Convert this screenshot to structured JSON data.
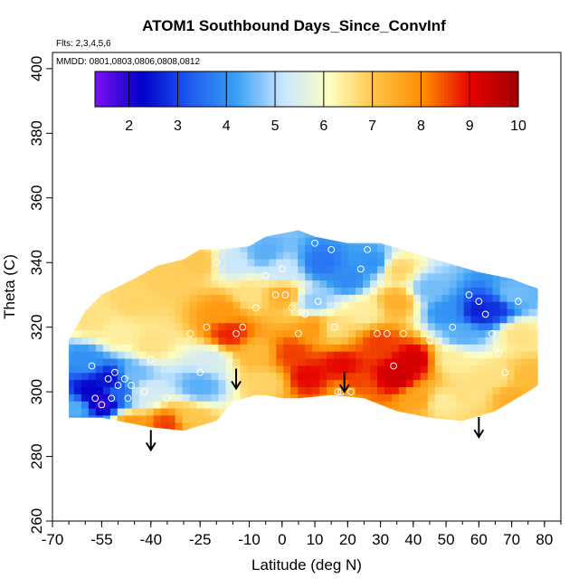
{
  "chart_data": {
    "type": "heatmap",
    "title": "ATOM1 Southbound Days_Since_ConvInf",
    "annotations": [
      "Flts: 2,3,4,5,6",
      "MMDD: 0801,0803,0806,0808,0812"
    ],
    "xlabel": "Latitude (deg N)",
    "ylabel": "Theta (C)",
    "xlim": [
      -70,
      85
    ],
    "ylim": [
      260,
      405
    ],
    "x_ticks": [
      -70,
      -55,
      -40,
      -25,
      -10,
      0,
      10,
      20,
      30,
      40,
      50,
      60,
      70,
      80
    ],
    "x_tick_labels": [
      "-70",
      "-55",
      "-40",
      "-25",
      "-10",
      "0",
      "10",
      "20",
      "30",
      "40",
      "50",
      "60",
      "70",
      "80"
    ],
    "y_ticks": [
      260,
      280,
      300,
      320,
      340,
      360,
      380,
      400
    ],
    "y_tick_labels": [
      "260",
      "280",
      "300",
      "320",
      "340",
      "360",
      "380",
      "400"
    ],
    "colorbar": {
      "min": 1.3,
      "max": 10,
      "ticks": [
        2,
        3,
        4,
        5,
        6,
        7,
        8,
        9,
        10
      ],
      "tick_labels": [
        "2",
        "3",
        "4",
        "5",
        "6",
        "7",
        "8",
        "9",
        "10"
      ],
      "colors": [
        "#7b12f0",
        "#0000c8",
        "#1e5af0",
        "#3aa0f5",
        "#c8e6ff",
        "#ffffc0",
        "#ffc040",
        "#ff8a00",
        "#e60000",
        "#a00000"
      ]
    },
    "field_boundary": {
      "lat": [
        -65,
        -64,
        -60,
        -55,
        -45,
        -40,
        -30,
        -20,
        -15,
        -8,
        -5,
        0,
        5,
        15,
        25,
        35,
        45,
        55,
        65,
        75,
        78,
        78,
        75,
        70,
        60,
        50,
        40,
        30,
        20,
        10,
        5,
        -5,
        -10,
        -20,
        -25,
        -30,
        -38,
        -45,
        -55,
        -60,
        -65
      ],
      "theta": [
        292,
        292,
        292,
        292,
        290,
        289,
        288,
        291,
        297,
        299,
        299,
        298,
        298,
        299,
        298,
        294,
        292,
        291,
        294,
        300,
        302,
        332,
        333,
        335,
        337,
        340,
        343,
        346,
        346,
        348,
        350,
        348,
        345,
        344,
        344,
        341,
        339,
        335,
        330,
        325,
        316
      ]
    },
    "field_nodes": [
      {
        "lat": -58,
        "theta": 300,
        "value": 2.2
      },
      {
        "lat": -55,
        "theta": 297,
        "value": 1.8
      },
      {
        "lat": -52,
        "theta": 304,
        "value": 2.4
      },
      {
        "lat": -60,
        "theta": 310,
        "value": 4.0
      },
      {
        "lat": -63,
        "theta": 295,
        "value": 4.4
      },
      {
        "lat": -50,
        "theta": 300,
        "value": 3.4
      },
      {
        "lat": -46,
        "theta": 305,
        "value": 4.6
      },
      {
        "lat": -42,
        "theta": 300,
        "value": 5.4
      },
      {
        "lat": -46,
        "theta": 290,
        "value": 7.8
      },
      {
        "lat": -35,
        "theta": 290,
        "value": 8.6
      },
      {
        "lat": -28,
        "theta": 292,
        "value": 7.0
      },
      {
        "lat": -25,
        "theta": 302,
        "value": 4.4
      },
      {
        "lat": -22,
        "theta": 310,
        "value": 5.4
      },
      {
        "lat": -40,
        "theta": 315,
        "value": 6.6
      },
      {
        "lat": -50,
        "theta": 318,
        "value": 6.4
      },
      {
        "lat": -58,
        "theta": 322,
        "value": 6.6
      },
      {
        "lat": -45,
        "theta": 328,
        "value": 6.8
      },
      {
        "lat": -35,
        "theta": 335,
        "value": 6.9
      },
      {
        "lat": -25,
        "theta": 340,
        "value": 7.0
      },
      {
        "lat": -16,
        "theta": 318,
        "value": 8.8
      },
      {
        "lat": -18,
        "theta": 325,
        "value": 7.8
      },
      {
        "lat": -15,
        "theta": 340,
        "value": 5.2
      },
      {
        "lat": -10,
        "theta": 330,
        "value": 6.6
      },
      {
        "lat": -5,
        "theta": 343,
        "value": 4.4
      },
      {
        "lat": 0,
        "theta": 338,
        "value": 5.2
      },
      {
        "lat": 0,
        "theta": 330,
        "value": 7.4
      },
      {
        "lat": -8,
        "theta": 312,
        "value": 7.2
      },
      {
        "lat": -5,
        "theta": 303,
        "value": 6.8
      },
      {
        "lat": 3,
        "theta": 312,
        "value": 8.6
      },
      {
        "lat": 10,
        "theta": 320,
        "value": 7.8
      },
      {
        "lat": 8,
        "theta": 305,
        "value": 9.0
      },
      {
        "lat": 18,
        "theta": 308,
        "value": 9.0
      },
      {
        "lat": 22,
        "theta": 302,
        "value": 8.6
      },
      {
        "lat": 20,
        "theta": 300,
        "value": 7.6
      },
      {
        "lat": 15,
        "theta": 320,
        "value": 6.6
      },
      {
        "lat": 30,
        "theta": 315,
        "value": 8.6
      },
      {
        "lat": 35,
        "theta": 305,
        "value": 9.4
      },
      {
        "lat": 40,
        "theta": 310,
        "value": 9.3
      },
      {
        "lat": 42,
        "theta": 298,
        "value": 7.6
      },
      {
        "lat": 48,
        "theta": 297,
        "value": 6.4
      },
      {
        "lat": 12,
        "theta": 340,
        "value": 3.6
      },
      {
        "lat": 20,
        "theta": 335,
        "value": 3.9
      },
      {
        "lat": 28,
        "theta": 340,
        "value": 4.0
      },
      {
        "lat": 10,
        "theta": 328,
        "value": 4.8
      },
      {
        "lat": 25,
        "theta": 325,
        "value": 6.4
      },
      {
        "lat": 35,
        "theta": 328,
        "value": 7.4
      },
      {
        "lat": 35,
        "theta": 338,
        "value": 6.8
      },
      {
        "lat": 45,
        "theta": 332,
        "value": 4.6
      },
      {
        "lat": 50,
        "theta": 325,
        "value": 4.0
      },
      {
        "lat": 55,
        "theta": 318,
        "value": 4.4
      },
      {
        "lat": 60,
        "theta": 325,
        "value": 2.6
      },
      {
        "lat": 65,
        "theta": 326,
        "value": 2.8
      },
      {
        "lat": 70,
        "theta": 330,
        "value": 4.6
      },
      {
        "lat": 72,
        "theta": 318,
        "value": 6.6
      },
      {
        "lat": 75,
        "theta": 305,
        "value": 7.2
      },
      {
        "lat": 65,
        "theta": 305,
        "value": 6.6
      },
      {
        "lat": 58,
        "theta": 300,
        "value": 6.6
      },
      {
        "lat": 52,
        "theta": 310,
        "value": 6.4
      },
      {
        "lat": 70,
        "theta": 298,
        "value": 7.4
      }
    ],
    "observations": [
      {
        "lat": -58,
        "theta": 308
      },
      {
        "lat": -57,
        "theta": 298
      },
      {
        "lat": -55,
        "theta": 296
      },
      {
        "lat": -53,
        "theta": 304
      },
      {
        "lat": -52,
        "theta": 298
      },
      {
        "lat": -51,
        "theta": 306
      },
      {
        "lat": -50,
        "theta": 302
      },
      {
        "lat": -48,
        "theta": 304
      },
      {
        "lat": -47,
        "theta": 298
      },
      {
        "lat": -46,
        "theta": 302
      },
      {
        "lat": -42,
        "theta": 300
      },
      {
        "lat": -40,
        "theta": 310
      },
      {
        "lat": -35,
        "theta": 298
      },
      {
        "lat": -28,
        "theta": 318
      },
      {
        "lat": -25,
        "theta": 306
      },
      {
        "lat": -23,
        "theta": 320
      },
      {
        "lat": -20,
        "theta": 340
      },
      {
        "lat": -14,
        "theta": 318
      },
      {
        "lat": -12,
        "theta": 320
      },
      {
        "lat": -8,
        "theta": 326
      },
      {
        "lat": -5,
        "theta": 336
      },
      {
        "lat": -2,
        "theta": 330
      },
      {
        "lat": 0,
        "theta": 338
      },
      {
        "lat": 1,
        "theta": 330
      },
      {
        "lat": 3,
        "theta": 326
      },
      {
        "lat": 5,
        "theta": 318
      },
      {
        "lat": 7,
        "theta": 324
      },
      {
        "lat": 10,
        "theta": 346
      },
      {
        "lat": 11,
        "theta": 328
      },
      {
        "lat": 15,
        "theta": 344
      },
      {
        "lat": 16,
        "theta": 320
      },
      {
        "lat": 17,
        "theta": 300
      },
      {
        "lat": 18,
        "theta": 300
      },
      {
        "lat": 21,
        "theta": 300
      },
      {
        "lat": 24,
        "theta": 338
      },
      {
        "lat": 26,
        "theta": 344
      },
      {
        "lat": 29,
        "theta": 318
      },
      {
        "lat": 32,
        "theta": 318
      },
      {
        "lat": 34,
        "theta": 308
      },
      {
        "lat": 37,
        "theta": 318
      },
      {
        "lat": 40,
        "theta": 292
      },
      {
        "lat": 45,
        "theta": 316
      },
      {
        "lat": 52,
        "theta": 320
      },
      {
        "lat": 57,
        "theta": 330
      },
      {
        "lat": 60,
        "theta": 328
      },
      {
        "lat": 62,
        "theta": 324
      },
      {
        "lat": 64,
        "theta": 318
      },
      {
        "lat": 66,
        "theta": 312
      },
      {
        "lat": 68,
        "theta": 306
      },
      {
        "lat": 72,
        "theta": 328
      }
    ],
    "markers": [
      {
        "type": "arrow-down",
        "lat": -40,
        "theta": 282
      },
      {
        "type": "arrow-down",
        "lat": -14,
        "theta": 301
      },
      {
        "type": "arrow-down",
        "lat": 19,
        "theta": 300
      },
      {
        "type": "arrow-down",
        "lat": 60,
        "theta": 286
      }
    ]
  }
}
